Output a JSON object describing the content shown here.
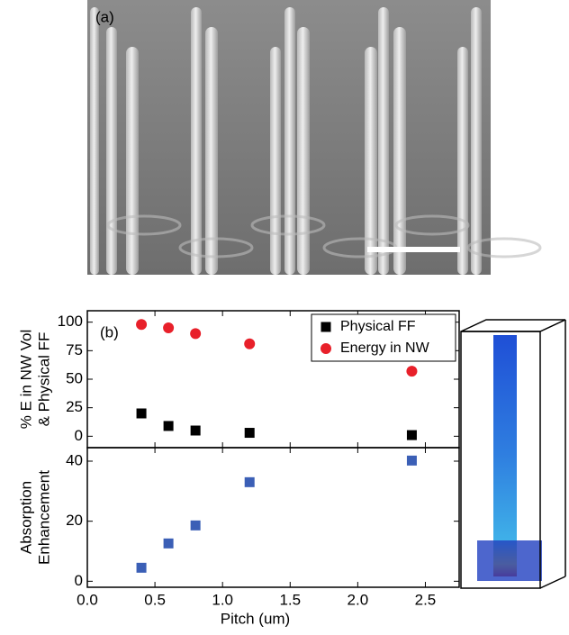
{
  "panel_a_label": "(a)",
  "chart_data": [
    {
      "type": "scatter",
      "panel_label": "(b)",
      "y_label": [
        "% E in NW Vol",
        "& Physical FF"
      ],
      "xlim": [
        0,
        2.75
      ],
      "ylim": [
        -10,
        110
      ],
      "yticks": [
        0,
        25,
        50,
        75,
        100
      ],
      "legend": "upper right",
      "series": [
        {
          "name": "Physical FF",
          "color": "#000000",
          "marker": "square",
          "x": [
            0.4,
            0.6,
            0.8,
            1.2,
            2.4
          ],
          "values": [
            20,
            9,
            5,
            3,
            1
          ]
        },
        {
          "name": "Energy in NW",
          "color": "#e8202a",
          "marker": "circle",
          "x": [
            0.4,
            0.6,
            0.8,
            1.2,
            2.4
          ],
          "values": [
            98,
            95,
            90,
            81,
            57
          ]
        }
      ]
    },
    {
      "type": "scatter",
      "y_label": [
        "Absorption",
        "Enhancement"
      ],
      "x_label": "Pitch (um)",
      "xlim": [
        0,
        2.75
      ],
      "ylim": [
        -2,
        44.5
      ],
      "yticks": [
        0,
        20,
        40
      ],
      "xticks": [
        {
          "value": 0,
          "label": "0.0"
        },
        {
          "value": 0.5,
          "label": "0.5"
        },
        {
          "value": 1,
          "label": "1.0"
        },
        {
          "value": 1.5,
          "label": "1.5"
        },
        {
          "value": 2,
          "label": "2.0"
        },
        {
          "value": 2.5,
          "label": "2.5"
        }
      ],
      "series": [
        {
          "color": "#3b5fb6",
          "marker": "square",
          "x": [
            0.4,
            0.6,
            0.8,
            1.2,
            2.4
          ],
          "values": [
            4.5,
            12.6,
            18.6,
            33,
            40.2
          ]
        }
      ]
    }
  ]
}
